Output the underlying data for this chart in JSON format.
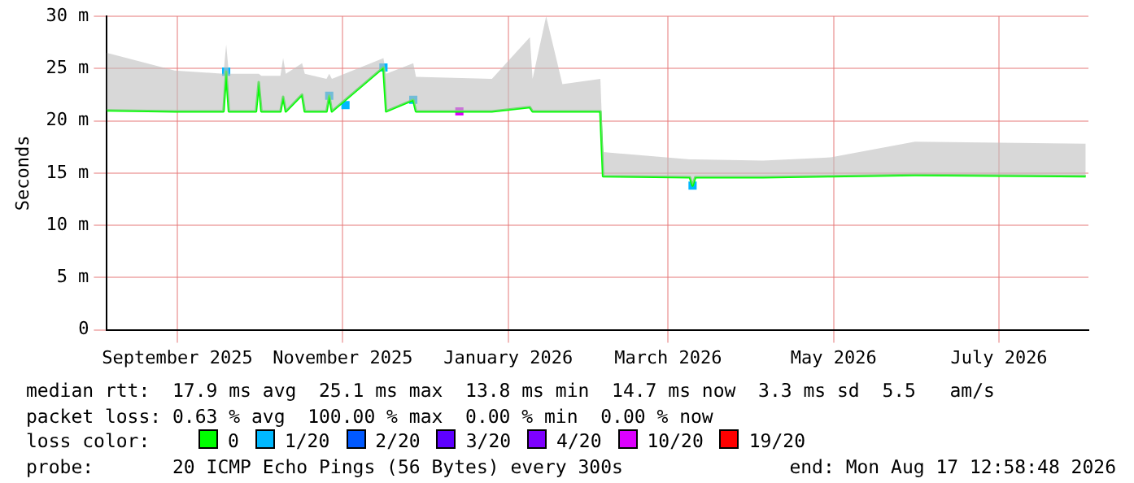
{
  "chart_data": {
    "type": "line",
    "ylabel": "Seconds",
    "x": [
      "2025-08-21",
      "2025-09-15",
      "2025-10-03",
      "2025-10-04",
      "2025-10-05",
      "2025-10-15",
      "2025-10-16",
      "2025-10-17",
      "2025-10-24",
      "2025-10-25",
      "2025-10-26",
      "2025-11-01",
      "2025-11-02",
      "2025-11-10",
      "2025-11-11",
      "2025-11-12",
      "2025-12-01",
      "2025-12-02",
      "2025-12-12",
      "2025-12-13",
      "2026-01-10",
      "2026-01-24",
      "2026-01-25",
      "2026-01-30",
      "2026-02-05",
      "2026-02-19",
      "2026-02-20",
      "2026-03-24",
      "2026-03-25",
      "2026-03-26",
      "2026-04-20",
      "2026-05-15",
      "2026-06-15",
      "2026-08-17"
    ],
    "series": [
      {
        "name": "0",
        "color": "#00ff00",
        "values": [
          21.0,
          20.9,
          20.9,
          24.7,
          20.9,
          20.9,
          23.7,
          20.9,
          20.9,
          22.3,
          20.9,
          22.5,
          20.9,
          20.9,
          22.4,
          20.9,
          25.1,
          20.9,
          22.0,
          20.9,
          20.9,
          21.3,
          20.9,
          20.9,
          20.9,
          20.9,
          14.7,
          14.6,
          13.8,
          14.6,
          14.6,
          14.7,
          14.8,
          14.7
        ],
        "lower": [
          21.0,
          20.9,
          20.9,
          24.7,
          20.9,
          20.9,
          23.7,
          20.9,
          20.9,
          22.3,
          20.9,
          22.5,
          20.9,
          20.9,
          22.4,
          20.9,
          25.1,
          20.9,
          22.0,
          20.9,
          20.9,
          21.3,
          20.9,
          20.9,
          20.9,
          20.9,
          14.7,
          14.6,
          13.8,
          14.6,
          14.6,
          14.7,
          14.8,
          14.7
        ],
        "upper": [
          26.5,
          24.8,
          24.5,
          27.3,
          24.5,
          24.5,
          24.5,
          24.3,
          24.3,
          26.0,
          24.5,
          25.5,
          24.5,
          24.0,
          24.5,
          24.0,
          26.0,
          24.5,
          25.5,
          24.2,
          24.0,
          28.0,
          24.0,
          30.0,
          23.5,
          24.0,
          17.0,
          16.3,
          16.3,
          16.3,
          16.2,
          16.5,
          18.0,
          17.8
        ]
      },
      {
        "name": "1/20",
        "color": "#00b8ff",
        "type": "scatter",
        "x": [
          "2025-10-04",
          "2025-11-11",
          "2025-11-17",
          "2025-12-01",
          "2025-12-12",
          "2026-03-25"
        ],
        "values": [
          24.7,
          22.4,
          21.5,
          25.1,
          22.0,
          13.8
        ]
      },
      {
        "name": "2/20",
        "color": "#0059ff",
        "type": "scatter",
        "values": [
          null,
          null,
          null,
          null,
          null,
          null,
          null,
          null,
          null,
          null,
          null,
          null,
          null,
          null,
          null,
          null,
          null,
          null,
          null,
          null,
          null,
          null,
          null,
          null,
          null,
          null,
          null,
          null,
          null,
          null,
          null,
          null,
          null,
          null
        ]
      },
      {
        "name": "3/20",
        "color": "#5e00ff",
        "type": "scatter",
        "values": [
          null,
          null,
          null,
          null,
          null,
          null,
          null,
          null,
          null,
          null,
          null,
          null,
          null,
          null,
          null,
          null,
          null,
          null,
          null,
          null,
          null,
          null,
          null,
          null,
          null,
          null,
          null,
          null,
          null,
          null,
          null,
          null,
          null,
          null
        ]
      },
      {
        "name": "4/20",
        "color": "#7e00ff",
        "type": "scatter",
        "values": [
          null,
          null,
          null,
          null,
          null,
          null,
          null,
          null,
          null,
          null,
          null,
          null,
          null,
          null,
          null,
          null,
          null,
          null,
          null,
          null,
          null,
          null,
          null,
          null,
          null,
          null,
          null,
          null,
          null,
          null,
          null,
          null,
          null,
          null
        ]
      },
      {
        "name": "10/20",
        "color": "#dd00ff",
        "type": "scatter",
        "x": [
          "2025-12-29"
        ],
        "values": [
          20.9
        ]
      },
      {
        "name": "19/20",
        "color": "#ff0000",
        "type": "scatter",
        "values": [
          null,
          null,
          null,
          null,
          null,
          null,
          null,
          null,
          null,
          null,
          null,
          null,
          null,
          null,
          null,
          null,
          null,
          null,
          null,
          null,
          null,
          null,
          null,
          null,
          null,
          null,
          null,
          null,
          null,
          null,
          null,
          null,
          null,
          null
        ]
      }
    ],
    "xlim": [
      "2025-08-21",
      "2026-08-18"
    ],
    "xticks": [
      {
        "value": "2025-09-16",
        "label": "September 2025"
      },
      {
        "value": "2025-11-16",
        "label": "November 2025"
      },
      {
        "value": "2026-01-16",
        "label": "January 2026"
      },
      {
        "value": "2026-03-16",
        "label": "March 2026"
      },
      {
        "value": "2026-05-16",
        "label": "May 2026"
      },
      {
        "value": "2026-07-16",
        "label": "July 2026"
      }
    ],
    "ylim": [
      0,
      30
    ],
    "yticks": [
      0,
      {
        "value": 5,
        "label": "5 m"
      },
      {
        "value": 10,
        "label": "10 m"
      },
      {
        "value": 15,
        "label": "15 m"
      },
      {
        "value": 20,
        "label": "20 m"
      },
      {
        "value": 25,
        "label": "25 m"
      },
      {
        "value": 30,
        "label": "30 m"
      }
    ],
    "grid": true,
    "legend": "bottom",
    "legend_title": "loss color:",
    "annotations": [
      "median rtt:  17.9 ms avg  25.1 ms max  13.8 ms min  14.7 ms now  3.3 ms sd  5.5   am/s",
      "packet loss: 0.63 % avg  100.00 % max  0.00 % min  0.00 % now",
      "probe:       20 ICMP Echo Pings (56 Bytes) every 300s",
      "end: Mon Aug 17 12:58:48 2026"
    ]
  }
}
